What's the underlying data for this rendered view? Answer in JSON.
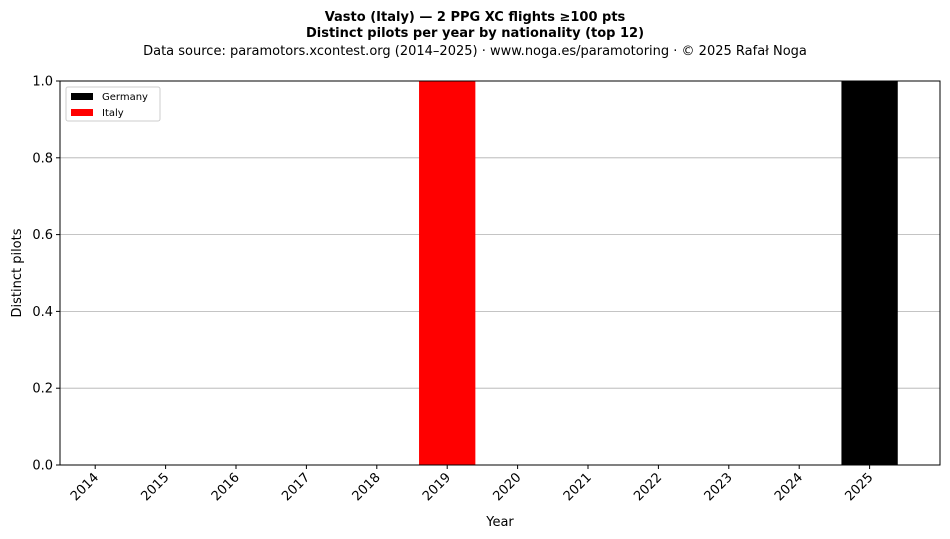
{
  "chart_data": {
    "type": "bar",
    "title_lines": [
      "Vasto (Italy)  —  2 PPG XC flights ≥100 pts",
      "Distinct pilots per year by nationality (top 12)"
    ],
    "subtitle": "Data source: paramotors.xcontest.org (2014–2025)  ·  www.noga.es/paramotoring  ·  © 2025 Rafał Noga",
    "xlabel": "Year",
    "ylabel": "Distinct pilots",
    "categories": [
      "2014",
      "2015",
      "2016",
      "2017",
      "2018",
      "2019",
      "2020",
      "2021",
      "2022",
      "2023",
      "2024",
      "2025"
    ],
    "series": [
      {
        "name": "Germany",
        "color": "#000000",
        "values": [
          0,
          0,
          0,
          0,
          0,
          0,
          0,
          0,
          0,
          0,
          0,
          1
        ]
      },
      {
        "name": "Italy",
        "color": "#ff0000",
        "values": [
          0,
          0,
          0,
          0,
          0,
          1,
          0,
          0,
          0,
          0,
          0,
          0
        ]
      }
    ],
    "stacked": true,
    "ylim": [
      0,
      1
    ],
    "yticks": [
      "0.0",
      "0.2",
      "0.4",
      "0.6",
      "0.8",
      "1.0"
    ],
    "grid": "horizontal",
    "legend": "top-left"
  }
}
